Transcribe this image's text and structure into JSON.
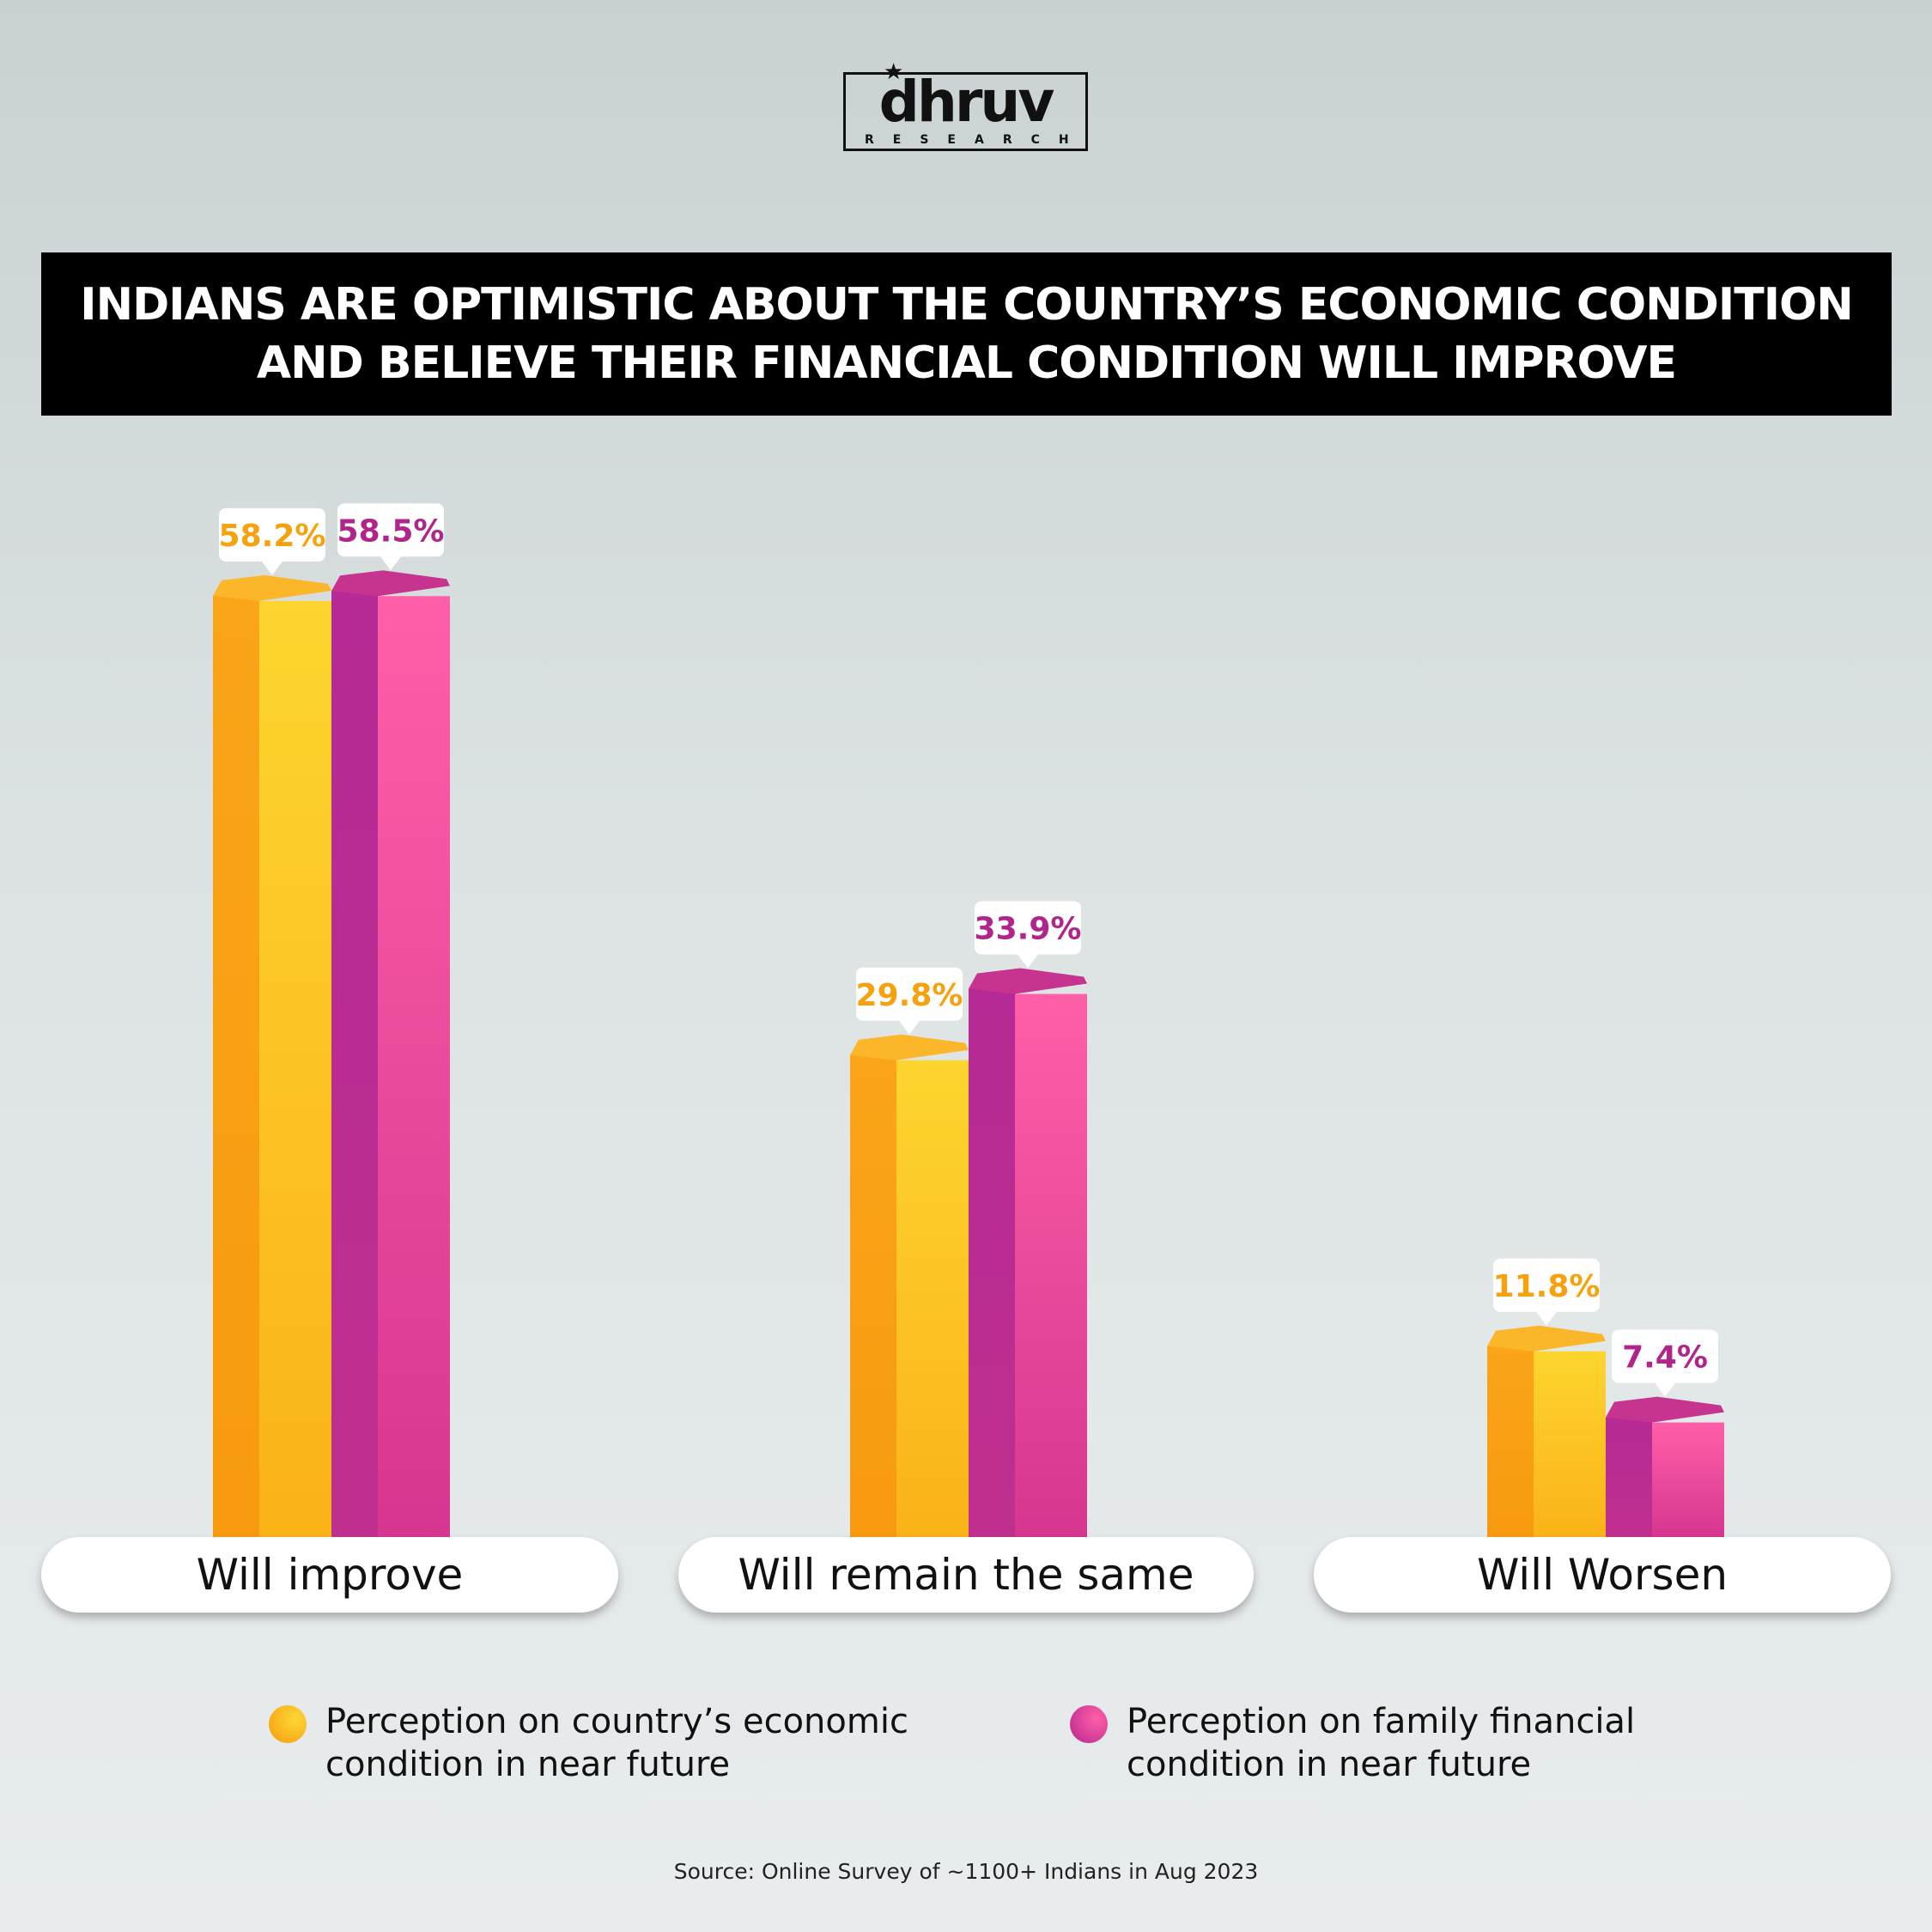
{
  "logo": {
    "word": "dhruv",
    "sub": "RESEARCH"
  },
  "header": {
    "title_line1": "INDIANS ARE OPTIMISTIC ABOUT THE COUNTRY’S ECONOMIC CONDITION",
    "title_line2": "AND BELIEVE THEIR FINANCIAL CONDITION WILL IMPROVE"
  },
  "chart_data": {
    "type": "bar",
    "categories": [
      "Will improve",
      "Will remain the same",
      "Will Worsen"
    ],
    "series": [
      {
        "name": "Perception on country’s economic condition in near future",
        "values": [
          58.2,
          29.8,
          11.8
        ],
        "labels": [
          "58.2%",
          "29.8%",
          "11.8%"
        ],
        "color": "#fbb317"
      },
      {
        "name": "Perception on family financial condition in near future",
        "values": [
          58.5,
          33.9,
          7.4
        ],
        "labels": [
          "58.5%",
          "33.9%",
          "7.4%"
        ],
        "color": "#d6368f"
      }
    ],
    "ylim": [
      0,
      60
    ],
    "grid": false,
    "legend": "bottom"
  },
  "legend": {
    "item1_line1": "Perception on country’s economic",
    "item1_line2": "condition in near future",
    "item2_line1": "Perception on family financial",
    "item2_line2": "condition in near future"
  },
  "source": "Source: Online Survey of ~1100+ Indians in Aug 2023",
  "colors": {
    "orange_dark": "#f7a21a",
    "orange_light": "#fdd835",
    "magenta_dark": "#b6268f",
    "magenta_light": "#ff5fa7",
    "orange_label": "#f6a20f",
    "magenta_label": "#b1258a"
  }
}
